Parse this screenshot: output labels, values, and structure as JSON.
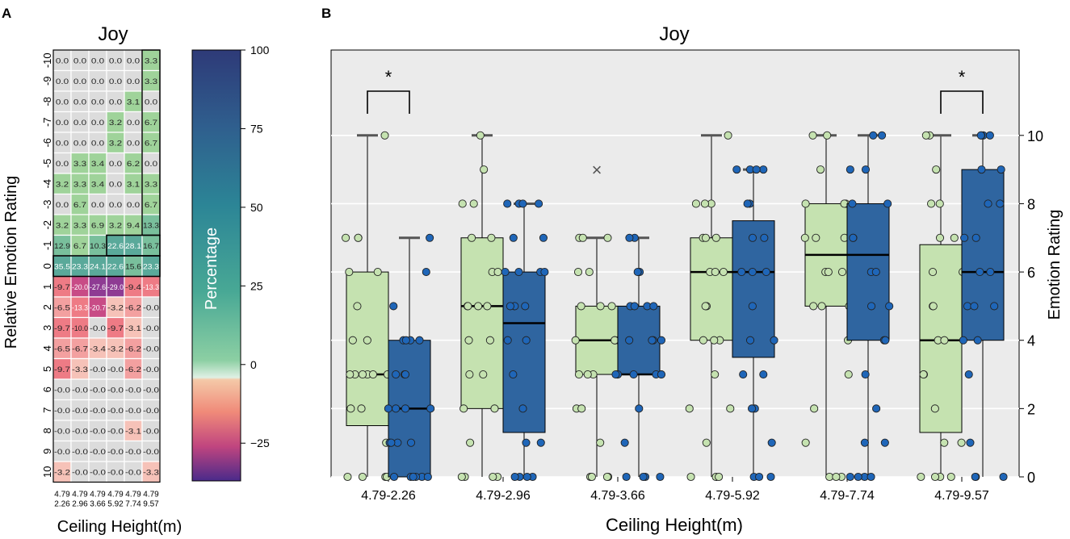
{
  "chart_data": [
    {
      "type": "heatmap",
      "panel_label": "A",
      "title": "Joy",
      "xlabel": "Ceiling Height(m)",
      "ylabel": "Relative Emotion Rating",
      "colorbar_label": "Percentage",
      "colorbar_ticks": [
        "100",
        "75",
        "50",
        "25",
        "0",
        "−25"
      ],
      "columns": [
        {
          "top": "4.79",
          "bottom": "2.26"
        },
        {
          "top": "4.79",
          "bottom": "2.96"
        },
        {
          "top": "4.79",
          "bottom": "3.66"
        },
        {
          "top": "4.79",
          "bottom": "5.92"
        },
        {
          "top": "4.79",
          "bottom": "7.74"
        },
        {
          "top": "4.79",
          "bottom": "9.57"
        }
      ],
      "rows": [
        "-10",
        "-9",
        "-8",
        "-7",
        "-6",
        "-5",
        "-4",
        "-3",
        "-2",
        "-1",
        "0",
        "1",
        "2",
        "3",
        "4",
        "5",
        "6",
        "7",
        "8",
        "9",
        "10"
      ],
      "cells": [
        [
          "0.0",
          "0.0",
          "0.0",
          "0.0",
          "0.0",
          "3.3"
        ],
        [
          "0.0",
          "0.0",
          "0.0",
          "0.0",
          "0.0",
          "3.3"
        ],
        [
          "0.0",
          "0.0",
          "0.0",
          "0.0",
          "3.1",
          "0.0"
        ],
        [
          "0.0",
          "0.0",
          "0.0",
          "3.2",
          "0.0",
          "6.7"
        ],
        [
          "0.0",
          "0.0",
          "0.0",
          "3.2",
          "0.0",
          "6.7"
        ],
        [
          "0.0",
          "3.3",
          "3.4",
          "0.0",
          "6.2",
          "0.0"
        ],
        [
          "3.2",
          "3.3",
          "3.4",
          "0.0",
          "3.1",
          "3.3"
        ],
        [
          "0.0",
          "6.7",
          "0.0",
          "0.0",
          "0.0",
          "6.7"
        ],
        [
          "3.2",
          "3.3",
          "6.9",
          "3.2",
          "9.4",
          "13.3"
        ],
        [
          "12.9",
          "6.7",
          "10.3",
          "22.6",
          "28.1",
          "16.7"
        ],
        [
          "35.5",
          "23.3",
          "24.1",
          "22.6",
          "15.6",
          "23.3"
        ],
        [
          "-9.7",
          "-20.0",
          "-27.6",
          "-29.0",
          "-9.4",
          "-13.3"
        ],
        [
          "-6.5",
          "-13.3",
          "-20.7",
          "-3.2",
          "-6.2",
          "-0.0"
        ],
        [
          "-9.7",
          "-10.0",
          "-0.0",
          "-9.7",
          "-3.1",
          "-0.0"
        ],
        [
          "-6.5",
          "-6.7",
          "-3.4",
          "-3.2",
          "-6.2",
          "-0.0"
        ],
        [
          "-9.7",
          "-3.3",
          "-0.0",
          "-0.0",
          "-6.2",
          "-0.0"
        ],
        [
          "-0.0",
          "-0.0",
          "-0.0",
          "-0.0",
          "-0.0",
          "-0.0"
        ],
        [
          "-0.0",
          "-0.0",
          "-0.0",
          "-0.0",
          "-0.0",
          "-0.0"
        ],
        [
          "-0.0",
          "-0.0",
          "-0.0",
          "-0.0",
          "-3.1",
          "-0.0"
        ],
        [
          "-0.0",
          "-0.0",
          "-0.0",
          "-0.0",
          "-0.0",
          "-0.0"
        ],
        [
          "-3.2",
          "-0.0",
          "-0.0",
          "-0.0",
          "-0.0",
          "-3.3"
        ]
      ],
      "colors": {
        "positive": "#8fcf8f",
        "negative": "#ef7f86",
        "strong_positive": "#4fa99a",
        "strong_negative": "#9b3d8f",
        "zero": "#dcdcdc"
      }
    },
    {
      "type": "box",
      "panel_label": "B",
      "title": "Joy",
      "xlabel": "Ceiling Height(m)",
      "ylabel": "Emotion Rating",
      "ylim": [
        0,
        12.5
      ],
      "yticks": [
        "0",
        "2",
        "4",
        "6",
        "8",
        "10"
      ],
      "categories": [
        "4.79-2.26",
        "4.79-2.96",
        "4.79-3.66",
        "4.79-5.92",
        "4.79-7.74",
        "4.79-9.57"
      ],
      "significance": [
        {
          "category": "4.79-2.26",
          "label": "*"
        },
        {
          "category": "4.79-9.57",
          "label": "*"
        }
      ],
      "outlier_marker": {
        "category": "4.79-3.66",
        "series": "light",
        "value": 9,
        "symbol": "×"
      },
      "series": [
        {
          "name": "light",
          "color": "#c5e2b0",
          "point_color": "#c5e2b0",
          "boxes": [
            {
              "q1": 1.5,
              "median": 3,
              "q3": 6,
              "whislo": 0,
              "whishi": 10
            },
            {
              "q1": 2,
              "median": 5,
              "q3": 7,
              "whislo": 0,
              "whishi": 10
            },
            {
              "q1": 3,
              "median": 4,
              "q3": 5,
              "whislo": 0,
              "whishi": 7
            },
            {
              "q1": 4,
              "median": 6,
              "q3": 7,
              "whislo": 0,
              "whishi": 10
            },
            {
              "q1": 5,
              "median": 6.5,
              "q3": 8,
              "whislo": 0,
              "whishi": 10
            },
            {
              "q1": 1.3,
              "median": 4,
              "q3": 6.8,
              "whislo": 0,
              "whishi": 10
            }
          ],
          "points": [
            [
              0,
              0,
              0,
              0,
              1,
              2,
              2,
              3,
              3,
              3,
              3,
              3,
              3,
              4,
              4,
              5,
              6,
              6,
              7,
              7,
              7,
              10
            ],
            [
              0,
              0,
              0,
              0,
              1,
              2,
              2,
              3,
              3,
              4,
              4,
              5,
              5,
              5,
              5,
              6,
              6,
              7,
              7,
              8,
              8,
              9,
              10
            ],
            [
              0,
              0,
              0,
              0,
              1,
              2,
              2,
              3,
              3,
              3,
              3,
              4,
              4,
              4,
              4,
              5,
              5,
              5,
              6,
              6,
              7,
              7,
              7
            ],
            [
              0,
              0,
              0,
              1,
              2,
              2,
              3,
              4,
              4,
              4,
              5,
              5,
              6,
              6,
              6,
              7,
              7,
              7,
              8,
              8,
              8,
              10
            ],
            [
              0,
              0,
              0,
              1,
              2,
              3,
              4,
              5,
              5,
              5,
              6,
              6,
              6,
              7,
              7,
              7,
              8,
              8,
              8,
              9,
              10,
              10
            ],
            [
              0,
              0,
              0,
              0,
              1,
              1,
              2,
              3,
              3,
              4,
              4,
              5,
              5,
              6,
              6,
              7,
              7,
              8,
              8,
              9,
              10,
              10
            ]
          ]
        },
        {
          "name": "dark",
          "color": "#2f65a0",
          "point_color": "#1f66b8",
          "boxes": [
            {
              "q1": 0,
              "median": 2,
              "q3": 4,
              "whislo": 0,
              "whishi": 7
            },
            {
              "q1": 1.3,
              "median": 4.5,
              "q3": 6,
              "whislo": 0,
              "whishi": 8
            },
            {
              "q1": 3,
              "median": 3,
              "q3": 5,
              "whislo": 0,
              "whishi": 7
            },
            {
              "q1": 3.5,
              "median": 6,
              "q3": 7.5,
              "whislo": 0,
              "whishi": 9
            },
            {
              "q1": 4,
              "median": 6.5,
              "q3": 8,
              "whislo": 0,
              "whishi": 10
            },
            {
              "q1": 4,
              "median": 6,
              "q3": 9,
              "whislo": 0,
              "whishi": 10
            }
          ],
          "points": [
            [
              0,
              0,
              0,
              0,
              0,
              0,
              1,
              1,
              1,
              1,
              2,
              2,
              2,
              2,
              3,
              3,
              3,
              4,
              4,
              4,
              4,
              5,
              6,
              7
            ],
            [
              0,
              0,
              0,
              0,
              1,
              1,
              2,
              3,
              4,
              4,
              5,
              5,
              5,
              6,
              6,
              6,
              6,
              7,
              7,
              8,
              8,
              8,
              8
            ],
            [
              0,
              0,
              0,
              0,
              1,
              2,
              3,
              3,
              3,
              3,
              3,
              3,
              4,
              4,
              4,
              4,
              5,
              5,
              5,
              5,
              6,
              6,
              7,
              7
            ],
            [
              0,
              0,
              0,
              1,
              2,
              2,
              3,
              3,
              4,
              4,
              5,
              6,
              6,
              6,
              7,
              7,
              8,
              8,
              9,
              9,
              9,
              9
            ],
            [
              0,
              0,
              0,
              0,
              1,
              1,
              2,
              3,
              4,
              4,
              5,
              5,
              6,
              6,
              7,
              7,
              8,
              8,
              9,
              9,
              10,
              10
            ],
            [
              0,
              0,
              0,
              1,
              3,
              4,
              4,
              5,
              5,
              5,
              6,
              6,
              7,
              7,
              8,
              8,
              9,
              9,
              10,
              10,
              10,
              10
            ]
          ]
        }
      ]
    }
  ]
}
